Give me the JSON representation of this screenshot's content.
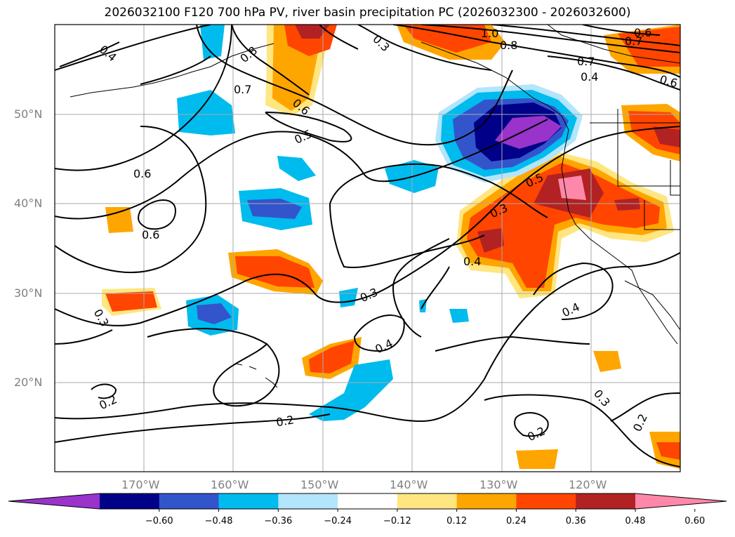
{
  "title": "2026032100 F120 700 hPa PV, river basin precipitation PC (2026032300 - 2026032600)",
  "lat_labels": [
    "50°N",
    "40°N",
    "30°N",
    "20°N"
  ],
  "lon_labels": [
    "170°W",
    "160°W",
    "150°W",
    "140°W",
    "130°W",
    "120°W"
  ],
  "colorbar": {
    "colors": [
      "#9933cc",
      "#000088",
      "#3355cc",
      "#00bbee",
      "#b3e5fc",
      "#ffffff",
      "#ffe680",
      "#ffa500",
      "#ff4500",
      "#b22222",
      "#ff88aa"
    ],
    "tick_labels": [
      "−0.60",
      "−0.48",
      "−0.36",
      "−0.24",
      "−0.12",
      "0.12",
      "0.24",
      "0.36",
      "0.48",
      "0.60"
    ]
  },
  "contour_labels": [
    "0.4",
    "0.8",
    "0.7",
    "0.3",
    "0.6",
    "1.0",
    "0.8",
    "0.6",
    "0.7",
    "0.7",
    "0.4",
    "0.6",
    "0.5",
    "0.6",
    "0.6",
    "0.5",
    "0.3",
    "0.4",
    "0.3",
    "0.3",
    "0.4",
    "0.4",
    "0.2",
    "0.2",
    "0.3",
    "0.2"
  ]
}
